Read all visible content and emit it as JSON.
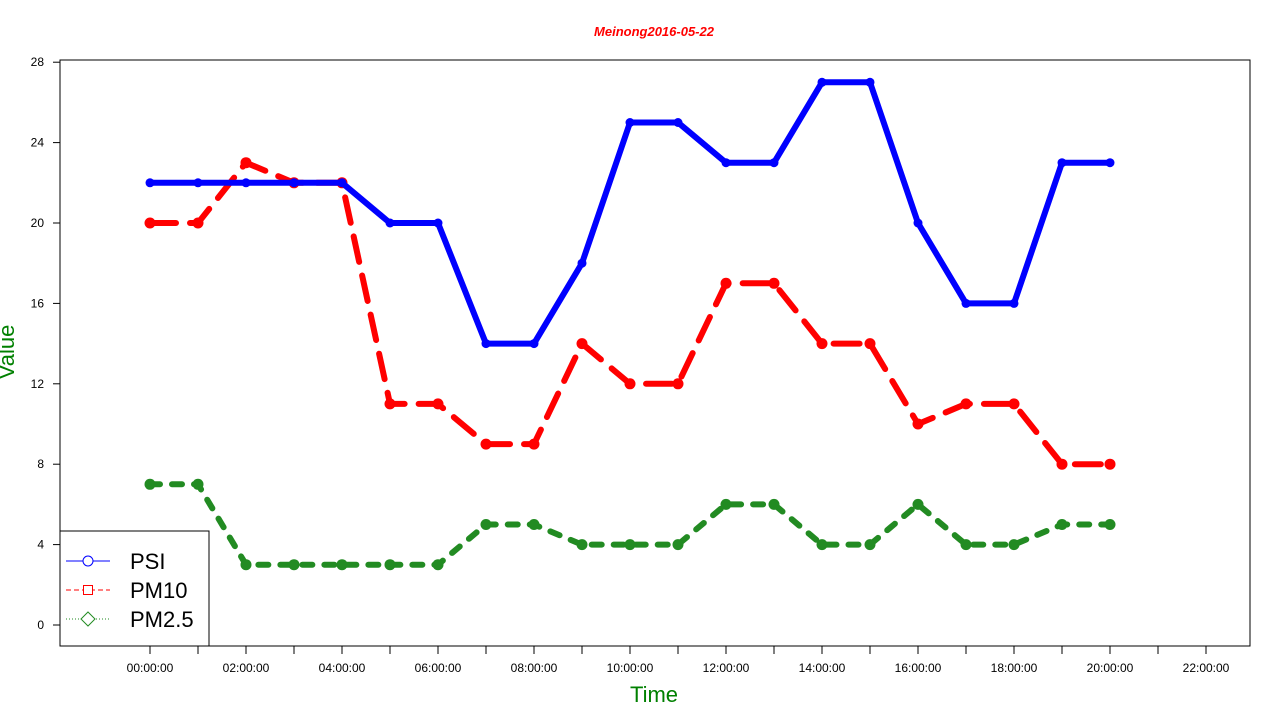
{
  "chart_data": {
    "type": "line",
    "title": "Meinong2016-05-22",
    "xlabel": "Time",
    "ylabel": "Value",
    "ylim": [
      0,
      28
    ],
    "yticks": [
      "0",
      "4",
      "8",
      "12",
      "16",
      "20",
      "24",
      "28"
    ],
    "x_tick_labels": [
      "00:00:00",
      "02:00:00",
      "04:00:00",
      "06:00:00",
      "08:00:00",
      "10:00:00",
      "12:00:00",
      "14:00:00",
      "16:00:00",
      "18:00:00",
      "20:00:00",
      "22:00:00"
    ],
    "x_hours": [
      0,
      1,
      2,
      3,
      4,
      5,
      6,
      7,
      8,
      9,
      10,
      11,
      12,
      13,
      14,
      15,
      16,
      17,
      18,
      19,
      20
    ],
    "legend_position": "bottom-left",
    "series": [
      {
        "name": "PSI",
        "color": "#0000ff",
        "line_style": "solid",
        "marker": "circle",
        "values": [
          22,
          22,
          22,
          22,
          22,
          20,
          20,
          14,
          14,
          18,
          25,
          25,
          23,
          23,
          27,
          27,
          20,
          16,
          16,
          23,
          23
        ]
      },
      {
        "name": "PM10",
        "color": "#ff0000",
        "line_style": "dashed",
        "marker": "square",
        "values": [
          20,
          20,
          23,
          22,
          22,
          11,
          11,
          9,
          9,
          14,
          12,
          12,
          17,
          17,
          14,
          14,
          10,
          11,
          11,
          8,
          8
        ]
      },
      {
        "name": "PM2.5",
        "color": "#228b22",
        "line_style": "dotted",
        "marker": "diamond",
        "values": [
          7,
          7,
          3,
          3,
          3,
          3,
          3,
          5,
          5,
          4,
          4,
          4,
          6,
          6,
          4,
          4,
          6,
          4,
          4,
          5,
          5
        ]
      }
    ]
  }
}
